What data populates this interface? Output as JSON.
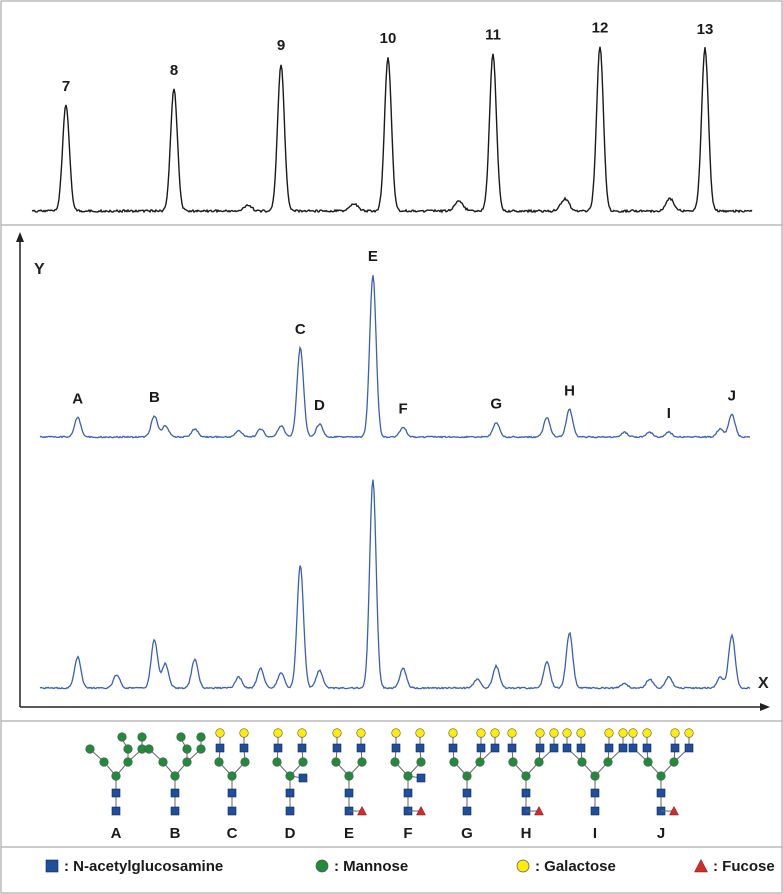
{
  "ladder": {
    "type": "line",
    "peak_labels": [
      "7",
      "8",
      "9",
      "10",
      "11",
      "12",
      "13"
    ],
    "peak_heights": [
      0.6,
      0.69,
      0.83,
      0.87,
      0.89,
      0.93,
      0.92
    ]
  },
  "chart_data": {
    "type": "line",
    "x_axis_label": "X",
    "y_axis_label": "Y",
    "x_range": [
      0,
      1
    ],
    "y_range": [
      0,
      1
    ],
    "series": [
      {
        "peaks": [
          {
            "x": 0.055,
            "h": 0.12,
            "label": "A"
          },
          {
            "x": 0.167,
            "h": 0.13,
            "label": "B"
          },
          {
            "x": 0.183,
            "h": 0.07
          },
          {
            "x": 0.226,
            "h": 0.05
          },
          {
            "x": 0.29,
            "h": 0.04
          },
          {
            "x": 0.322,
            "h": 0.05
          },
          {
            "x": 0.352,
            "h": 0.07
          },
          {
            "x": 0.38,
            "h": 0.55,
            "label": "C"
          },
          {
            "x": 0.408,
            "h": 0.08,
            "label": "D"
          },
          {
            "x": 0.486,
            "h": 1.0,
            "label": "E"
          },
          {
            "x": 0.53,
            "h": 0.06,
            "label": "F"
          },
          {
            "x": 0.666,
            "h": 0.09,
            "label": "G"
          },
          {
            "x": 0.74,
            "h": 0.12
          },
          {
            "x": 0.773,
            "h": 0.17,
            "label": "H"
          },
          {
            "x": 0.853,
            "h": 0.03
          },
          {
            "x": 0.89,
            "h": 0.03
          },
          {
            "x": 0.918,
            "h": 0.03,
            "label": "I"
          },
          {
            "x": 0.993,
            "h": 0.05
          },
          {
            "x": 1.01,
            "h": 0.14,
            "label": "J"
          }
        ]
      },
      {
        "peaks": [
          {
            "x": 0.055,
            "h": 0.14
          },
          {
            "x": 0.112,
            "h": 0.06
          },
          {
            "x": 0.167,
            "h": 0.22
          },
          {
            "x": 0.183,
            "h": 0.11
          },
          {
            "x": 0.226,
            "h": 0.13
          },
          {
            "x": 0.29,
            "h": 0.05
          },
          {
            "x": 0.322,
            "h": 0.09
          },
          {
            "x": 0.352,
            "h": 0.07
          },
          {
            "x": 0.38,
            "h": 0.56
          },
          {
            "x": 0.408,
            "h": 0.08
          },
          {
            "x": 0.486,
            "h": 0.95
          },
          {
            "x": 0.53,
            "h": 0.09
          },
          {
            "x": 0.638,
            "h": 0.04
          },
          {
            "x": 0.666,
            "h": 0.1
          },
          {
            "x": 0.74,
            "h": 0.12
          },
          {
            "x": 0.773,
            "h": 0.25
          },
          {
            "x": 0.853,
            "h": 0.02
          },
          {
            "x": 0.89,
            "h": 0.04
          },
          {
            "x": 0.918,
            "h": 0.05
          },
          {
            "x": 0.993,
            "h": 0.05
          },
          {
            "x": 1.01,
            "h": 0.24
          }
        ]
      }
    ]
  },
  "glycans": {
    "labels": [
      "A",
      "B",
      "C",
      "D",
      "E",
      "F",
      "G",
      "H",
      "I",
      "J"
    ],
    "structures": [
      {
        "branches": 2,
        "terminal": "mannose",
        "bisect": false,
        "fucose": false,
        "tri": false
      },
      {
        "branches": 2,
        "terminal": "mannose",
        "bisect": false,
        "fucose": false,
        "tri": false
      },
      {
        "branches": 2,
        "terminal": "galactose",
        "bisect": false,
        "fucose": false,
        "tri": false
      },
      {
        "branches": 2,
        "terminal": "galactose",
        "bisect": true,
        "fucose": false,
        "tri": false
      },
      {
        "branches": 2,
        "terminal": "galactose",
        "bisect": false,
        "fucose": true,
        "tri": false
      },
      {
        "branches": 2,
        "terminal": "galactose",
        "bisect": true,
        "fucose": true,
        "tri": false
      },
      {
        "branches": 3,
        "terminal": "galactose",
        "bisect": false,
        "fucose": false,
        "tri": true
      },
      {
        "branches": 3,
        "terminal": "galactose",
        "bisect": false,
        "fucose": true,
        "tri": true
      },
      {
        "branches": 4,
        "terminal": "galactose",
        "bisect": false,
        "fucose": false,
        "tri": true
      },
      {
        "branches": 4,
        "terminal": "galactose",
        "bisect": false,
        "fucose": true,
        "tri": true
      }
    ]
  },
  "legend": {
    "items": [
      {
        "symbol": "square",
        "color": "#1f4e9c",
        "text": ": N-acetylglucosamine"
      },
      {
        "symbol": "circle",
        "color": "#1e8c3a",
        "text": ": Mannose"
      },
      {
        "symbol": "circle",
        "color": "#ffee00",
        "text": ": Galactose"
      },
      {
        "symbol": "triangle",
        "color": "#d42a2a",
        "text": ": Fucose"
      }
    ]
  },
  "colors": {
    "ladder_trace": "#1a1a1a",
    "sample_trace": "#3a5fb5",
    "panel_border": "#9a9a9a",
    "glcnac": "#1f4e9c",
    "mannose": "#1e8c3a",
    "galactose": "#ffee00",
    "fucose": "#d42a2a"
  }
}
